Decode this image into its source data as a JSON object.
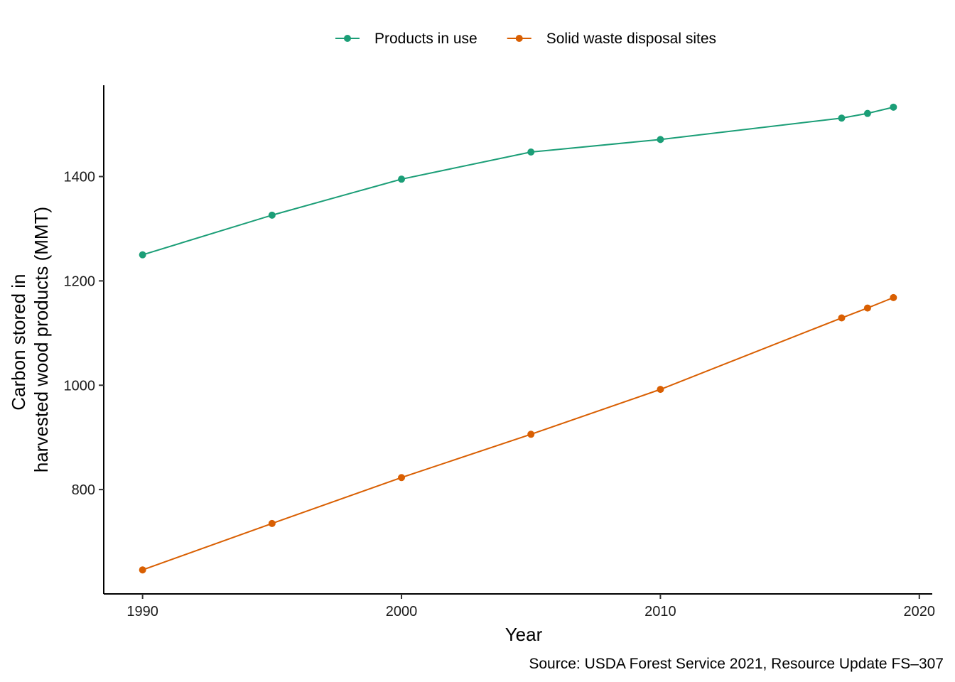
{
  "chart_data": {
    "type": "line",
    "title": "",
    "xlabel": "Year",
    "ylabel_lines": [
      "Carbon stored in",
      "harvested wood products (MMT)"
    ],
    "caption": "Source: USDA Forest Service 2021, Resource Update FS–307",
    "legend_position": "top",
    "grid": false,
    "x": [
      1990,
      1995,
      2000,
      2005,
      2010,
      2017,
      2018,
      2019
    ],
    "series": [
      {
        "name": "Products in use",
        "color": "#1b9e77",
        "values": [
          1250,
          1326,
          1395,
          1447,
          1471,
          1512,
          1521,
          1533
        ]
      },
      {
        "name": "Solid waste disposal sites",
        "color": "#d95f02",
        "values": [
          646,
          735,
          823,
          906,
          992,
          1129,
          1148,
          1168
        ]
      }
    ],
    "xticks": [
      1990,
      2000,
      2010,
      2020
    ],
    "yticks": [
      800,
      1000,
      1200,
      1400
    ],
    "xlim": [
      1988.5,
      2020.5
    ],
    "ylim": [
      600,
      1575
    ]
  }
}
